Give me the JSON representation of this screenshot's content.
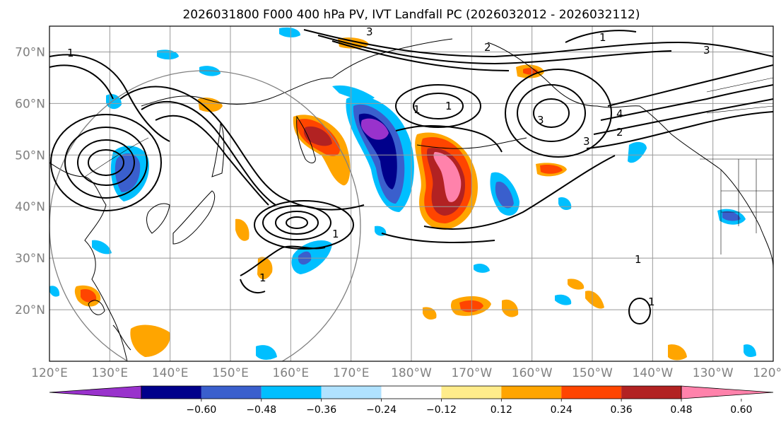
{
  "title": "2026031800 F000 400 hPa PV, IVT Landfall PC (2026032012 - 2026032112)",
  "lat_labels": [
    "70°N",
    "60°N",
    "50°N",
    "40°N",
    "30°N",
    "20°N"
  ],
  "lat_values": [
    70,
    60,
    50,
    40,
    30,
    20
  ],
  "lon_labels": [
    "120°E",
    "130°E",
    "140°E",
    "150°E",
    "160°E",
    "170°E",
    "180°W",
    "170°W",
    "160°W",
    "150°W",
    "140°W",
    "130°W",
    "120°W"
  ],
  "lon_values": [
    120,
    130,
    140,
    150,
    160,
    170,
    180,
    190,
    200,
    210,
    220,
    230,
    240
  ],
  "map_extent": {
    "lon_min": 120,
    "lon_max": 240,
    "lat_min": 10,
    "lat_max": 75
  },
  "colorbar": {
    "tick_labels": [
      "−0.60",
      "−0.48",
      "−0.36",
      "−0.24",
      "−0.12",
      "0.12",
      "0.24",
      "0.36",
      "0.48",
      "0.60"
    ],
    "colors": [
      "#9932cc",
      "#00008b",
      "#3a5fcd",
      "#00bfff",
      "#b0e2ff",
      "#ffffff",
      "#ffec8b",
      "#ffa500",
      "#ff4500",
      "#b22222",
      "#ff82ab"
    ]
  },
  "pv_contour_labels": [
    "1",
    "2",
    "3",
    "3",
    "1",
    "1",
    "1",
    "2",
    "3",
    "3",
    "4",
    "1",
    "1",
    "1",
    "1"
  ],
  "colors": {
    "frame": "#000000",
    "grid": "#999999",
    "coast": "#000000",
    "contour": "#000000",
    "circle": "#808080"
  }
}
